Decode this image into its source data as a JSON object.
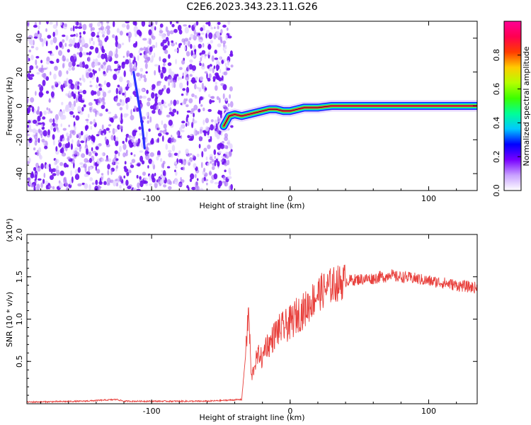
{
  "figure": {
    "title": "C2E6.2023.343.23.11.G26"
  },
  "chart_data": [
    {
      "type": "heatmap",
      "xlabel": "Height of straight line (km)",
      "ylabel": "Frequency (Hz)",
      "xlim": [
        -190,
        135
      ],
      "ylim": [
        -50,
        50
      ],
      "x_ticks": [
        -100,
        0,
        100
      ],
      "y_ticks": [
        -40,
        -20,
        0,
        20,
        40
      ],
      "noise_region_x": [
        -190,
        -45
      ],
      "ridge": {
        "x": [
          -48,
          -44,
          -40,
          -35,
          -30,
          -25,
          -20,
          -15,
          -10,
          -5,
          0,
          5,
          10,
          15,
          20,
          25,
          30,
          35,
          40,
          60,
          80,
          100,
          120,
          135
        ],
        "freq": [
          -12,
          -6,
          -5,
          -6,
          -5,
          -4,
          -3,
          -2,
          -2,
          -3,
          -3,
          -2,
          -1,
          -1,
          -1,
          -0.5,
          0,
          0,
          0,
          0,
          0,
          0,
          0,
          0
        ]
      },
      "streak": {
        "x": [
          -113,
          -110,
          -107,
          -105
        ],
        "freq": [
          20,
          5,
          -10,
          -25
        ]
      },
      "colorbar": {
        "label": "Normalized spectral amplitude",
        "ticks": [
          0.0,
          0.2,
          0.4,
          0.6,
          0.8
        ],
        "range": [
          0,
          1
        ],
        "colors": [
          "#ffffff",
          "#c8a0ff",
          "#7800ff",
          "#0000ff",
          "#00c8ff",
          "#00ff96",
          "#3cff00",
          "#b4ff00",
          "#ffcc00",
          "#ff3c00",
          "#ff0050",
          "#ff0096"
        ]
      }
    },
    {
      "type": "line",
      "xlabel": "Height of straight line (km)",
      "ylabel": "SNR (10 * v/v)",
      "y_multiplier": "(x10⁴)",
      "xlim": [
        -190,
        135
      ],
      "ylim": [
        0,
        2.0
      ],
      "x_ticks": [
        -100,
        0,
        100
      ],
      "y_ticks": [
        0.5,
        1.0,
        1.5,
        2.0
      ],
      "y_tick_labels": [
        "0.5",
        "1.0",
        "1.5",
        "2.0"
      ],
      "color": "#e8403c",
      "series": [
        {
          "x": [
            -190,
            -150,
            -125,
            -120,
            -100,
            -60,
            -35,
            -32,
            -30,
            -28,
            -25,
            -22,
            -20,
            -18,
            -15,
            -10,
            -5,
            0,
            5,
            10,
            15,
            20,
            25,
            30,
            40,
            50,
            60,
            65,
            70,
            72,
            75,
            80,
            90,
            100,
            110,
            120,
            130,
            135
          ],
          "values": [
            0.02,
            0.03,
            0.05,
            0.03,
            0.03,
            0.03,
            0.05,
            0.6,
            1.1,
            0.3,
            0.5,
            0.6,
            0.5,
            0.7,
            0.7,
            0.85,
            0.9,
            0.95,
            1.05,
            1.1,
            1.2,
            1.3,
            1.35,
            1.4,
            1.45,
            1.47,
            1.48,
            1.5,
            1.5,
            1.55,
            1.5,
            1.5,
            1.48,
            1.45,
            1.43,
            1.4,
            1.38,
            1.37
          ]
        }
      ]
    }
  ]
}
